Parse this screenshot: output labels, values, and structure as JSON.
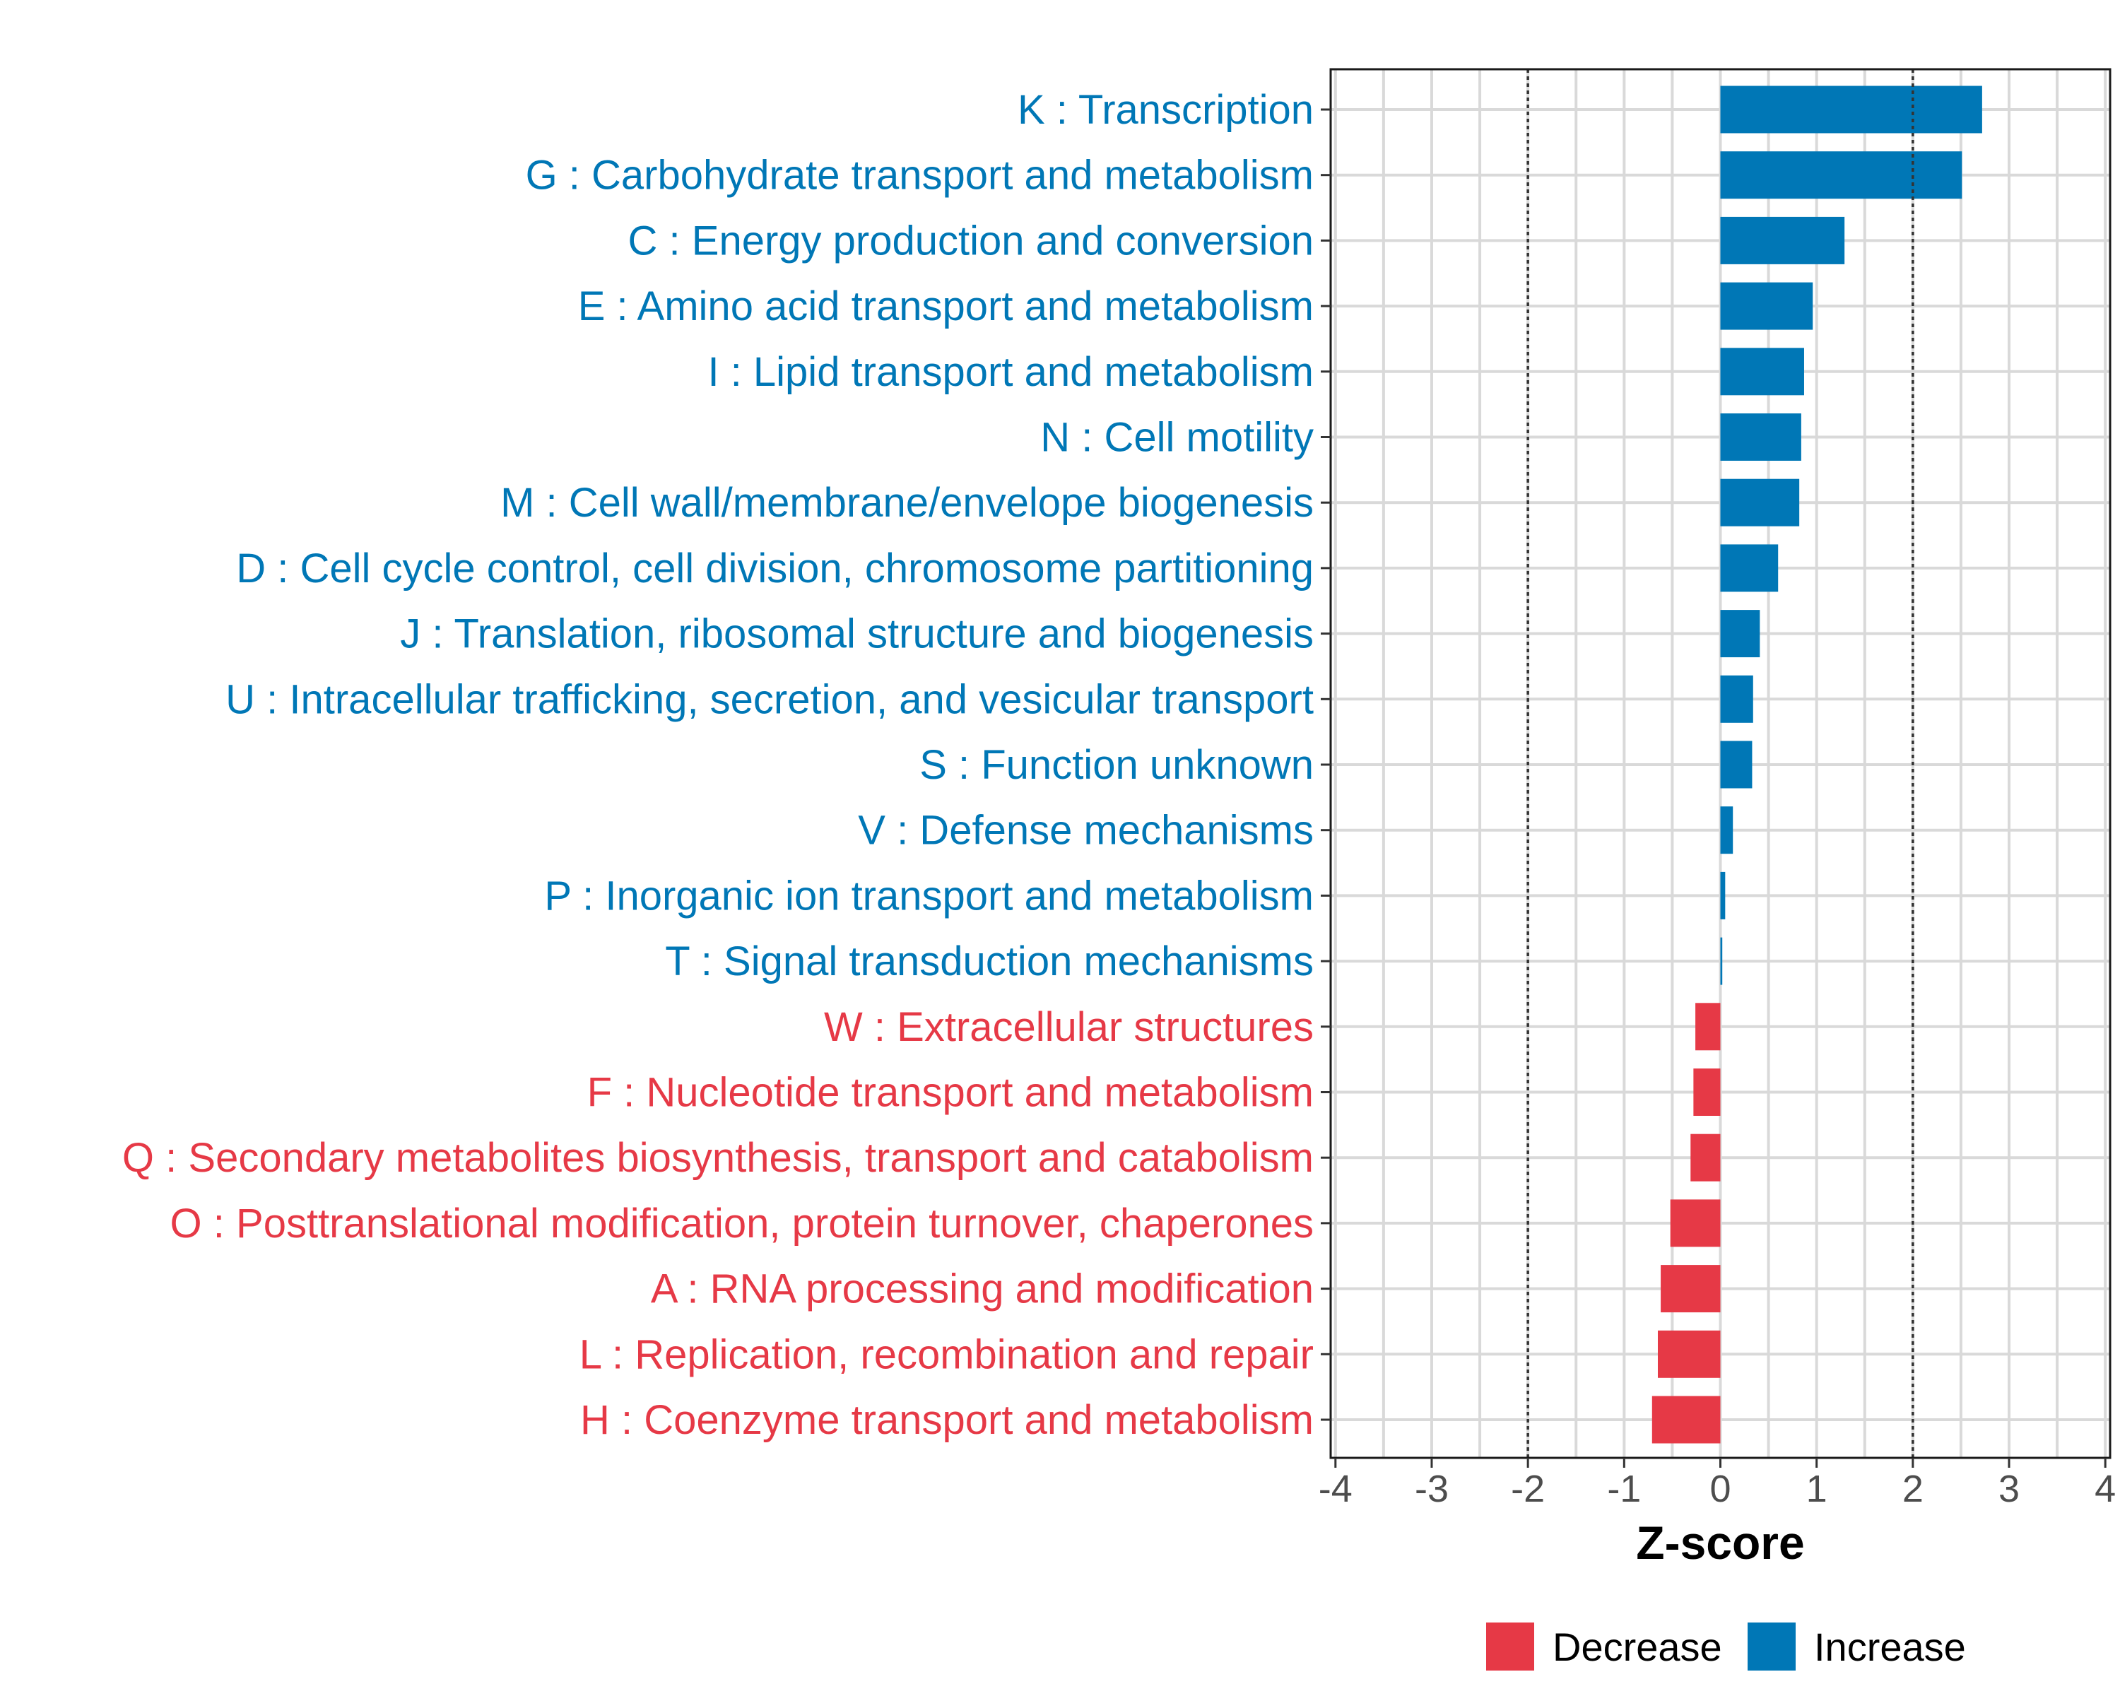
{
  "chart_data": {
    "type": "bar",
    "orientation": "horizontal",
    "title": "",
    "xlabel": "Z-score",
    "ylabel": "",
    "xlim": [
      -4.05,
      4.05
    ],
    "xticks": [
      -4,
      -3,
      -2,
      -1,
      0,
      1,
      2,
      3,
      4
    ],
    "xtick_labels": [
      "-4",
      "-3",
      "-2",
      "-1",
      "0",
      "1",
      "2",
      "3",
      "4"
    ],
    "reference_lines": [
      -2,
      2
    ],
    "grid": true,
    "legend_position": "bottom",
    "colors": {
      "Decrease": "#e63946",
      "Increase": "#0077b6"
    },
    "legend": [
      {
        "name": "Decrease",
        "color": "#e63946"
      },
      {
        "name": "Increase",
        "color": "#0077b6"
      }
    ],
    "categories": [
      {
        "label": "K : Transcription",
        "value": 2.72,
        "group": "Increase"
      },
      {
        "label": "G : Carbohydrate transport and metabolism",
        "value": 2.51,
        "group": "Increase"
      },
      {
        "label": "C : Energy production and conversion",
        "value": 1.29,
        "group": "Increase"
      },
      {
        "label": "E : Amino acid transport and metabolism",
        "value": 0.96,
        "group": "Increase"
      },
      {
        "label": "I : Lipid transport and metabolism",
        "value": 0.87,
        "group": "Increase"
      },
      {
        "label": "N : Cell motility",
        "value": 0.84,
        "group": "Increase"
      },
      {
        "label": "M : Cell wall/membrane/envelope biogenesis",
        "value": 0.82,
        "group": "Increase"
      },
      {
        "label": "D : Cell cycle control, cell division, chromosome partitioning",
        "value": 0.6,
        "group": "Increase"
      },
      {
        "label": "J : Translation, ribosomal structure and biogenesis",
        "value": 0.41,
        "group": "Increase"
      },
      {
        "label": "U : Intracellular trafficking, secretion, and vesicular transport",
        "value": 0.34,
        "group": "Increase"
      },
      {
        "label": "S : Function unknown",
        "value": 0.33,
        "group": "Increase"
      },
      {
        "label": "V : Defense mechanisms",
        "value": 0.13,
        "group": "Increase"
      },
      {
        "label": "P : Inorganic ion transport and metabolism",
        "value": 0.05,
        "group": "Increase"
      },
      {
        "label": "T : Signal transduction mechanisms",
        "value": 0.02,
        "group": "Increase"
      },
      {
        "label": "W : Extracellular structures",
        "value": -0.26,
        "group": "Decrease"
      },
      {
        "label": "F : Nucleotide transport and metabolism",
        "value": -0.28,
        "group": "Decrease"
      },
      {
        "label": "Q : Secondary metabolites biosynthesis, transport and catabolism",
        "value": -0.31,
        "group": "Decrease"
      },
      {
        "label": "O : Posttranslational modification, protein turnover, chaperones",
        "value": -0.52,
        "group": "Decrease"
      },
      {
        "label": "A : RNA processing and modification",
        "value": -0.62,
        "group": "Decrease"
      },
      {
        "label": "L : Replication, recombination and repair",
        "value": -0.65,
        "group": "Decrease"
      },
      {
        "label": "H : Coenzyme transport and metabolism",
        "value": -0.71,
        "group": "Decrease"
      }
    ]
  }
}
